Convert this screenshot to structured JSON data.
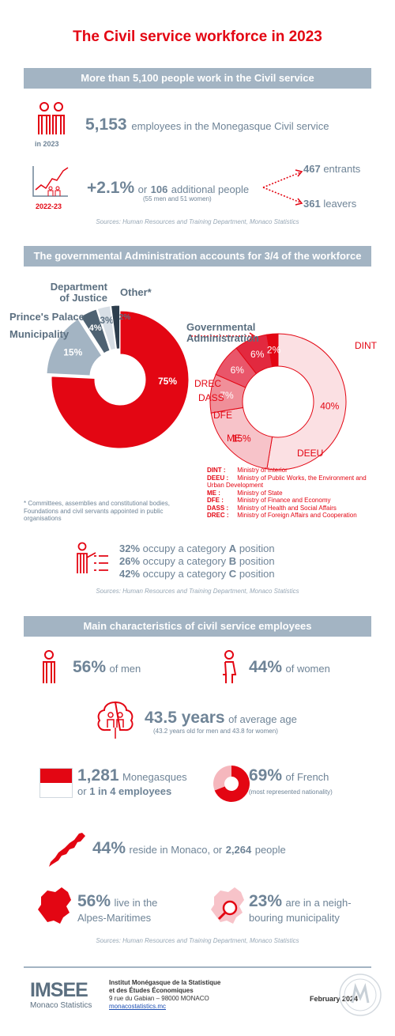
{
  "title": "The Civil service workforce in 2023",
  "section1": {
    "band": "More than 5,100 people work in the Civil service",
    "icon1_label": "in 2023",
    "employees_value": "5,153",
    "employees_text": "employees in the Monegasque Civil service",
    "icon2_label": "2022-23",
    "growth_pct": "+2.1%",
    "growth_or": "or",
    "growth_value": "106",
    "growth_text": "additional people",
    "growth_detail": "(55 men and 51 women)",
    "entrants_value": "467",
    "entrants_text": "entrants",
    "leavers_value": "361",
    "leavers_text": "leavers",
    "source": "Sources: Human Resources and Training Department, Monaco Statistics"
  },
  "section2": {
    "band": "The governmental Administration accounts for 3/4 of the workforce",
    "labels": {
      "justice": "Department of Justice",
      "other": "Other*",
      "palace": "Prince's Palace",
      "municipality": "Municipality",
      "governmental": "Governmental Administration"
    },
    "footnote": "* Committees, assemblies and constitutional bodies, Foundations and civil servants appointed in public organisations",
    "definitions": [
      {
        "code": "DINT :",
        "text": "Ministry of Interior"
      },
      {
        "code": "DEEU :",
        "text": "Ministry of Public Works, the Environment and Urban Development"
      },
      {
        "code": "ME :",
        "text": "Ministry of State"
      },
      {
        "code": "DFE :",
        "text": "Ministry of Finance and Economy"
      },
      {
        "code": "DASS :",
        "text": "Ministry of Health and Social Affairs"
      },
      {
        "code": "DREC :",
        "text": "Ministry of Foreign Affairs and Cooperation"
      }
    ],
    "categories": [
      {
        "pct": "32%",
        "pre": "occupy a category",
        "cat": "A",
        "post": "position"
      },
      {
        "pct": "26%",
        "pre": "occupy a category",
        "cat": "B",
        "post": "position"
      },
      {
        "pct": "42%",
        "pre": "occupy a category",
        "cat": "C",
        "post": "position"
      }
    ],
    "source": "Sources: Human Resources and Training Department, Monaco Statistics"
  },
  "chart_data": [
    {
      "type": "pie",
      "categories": [
        "Governmental Administration",
        "Municipality",
        "Prince's Palace",
        "Department of Justice",
        "Other*"
      ],
      "values": [
        75,
        15,
        4,
        3,
        2
      ],
      "labels": [
        "75%",
        "15%",
        "4%",
        "3%",
        "2%"
      ],
      "colors": [
        "#e30613",
        "#a3b4c3",
        "#4e6272",
        "#d7dee5",
        "#2d3e4d"
      ]
    },
    {
      "type": "pie",
      "categories": [
        "DINT",
        "DEEU",
        "ME",
        "DFE",
        "DASS",
        "DREC"
      ],
      "values": [
        40,
        15,
        7,
        6,
        6,
        2
      ],
      "labels": [
        "40%",
        "15%",
        "7%",
        "6%",
        "6%",
        "2%"
      ],
      "colors": [
        "#fbe0e3",
        "#f7c3c9",
        "#f08f99",
        "#e9566a",
        "#e2293f",
        "#e30613"
      ]
    },
    {
      "type": "pie",
      "categories": [
        "French",
        "Other"
      ],
      "values": [
        69,
        31
      ],
      "labels": [
        "69%"
      ],
      "colors": [
        "#e30613",
        "#f5b7bd"
      ]
    }
  ],
  "section3": {
    "band": "Main characteristics of civil service employees",
    "men_pct": "56%",
    "men_text": "of men",
    "women_pct": "44%",
    "women_text": "of women",
    "age_value": "43.5 years",
    "age_text": "of average age",
    "age_detail": "(43.2 years old for men and 43.8 for women)",
    "monegasques_value": "1,281",
    "monegasques_text": "Monegasques",
    "monegasques_or": "or",
    "monegasques_ratio": "1 in 4 employees",
    "french_pct": "69%",
    "french_text": "of French",
    "french_detail": "(most represented nationality)",
    "monaco_pct": "44%",
    "monaco_text": "reside in Monaco, or",
    "monaco_people": "2,264",
    "monaco_people_text": "people",
    "alpes_pct": "56%",
    "alpes_text1": "live in the",
    "alpes_text2": "Alpes-Maritimes",
    "neigh_pct": "23%",
    "neigh_text1": "are in a neigh-",
    "neigh_text2": "bouring municipality",
    "source": "Sources: Human Resources and Training Department, Monaco Statistics"
  },
  "footer": {
    "logo_main": "IMSEE",
    "logo_sub": "Monaco Statistics",
    "org_line1": "Institut Monégasque de la Statistique",
    "org_line2": "et des Études Économiques",
    "address": "9 rue du Gabian – 98000 MONACO",
    "website": "monacostatistics.mc",
    "date": "February 2024"
  }
}
